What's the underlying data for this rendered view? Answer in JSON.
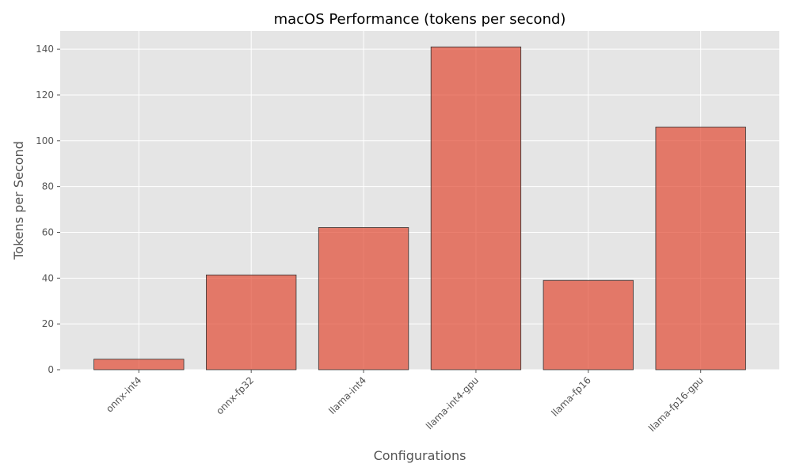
{
  "chart_data": {
    "type": "bar",
    "title": "macOS Performance (tokens per second)",
    "xlabel": "Configurations",
    "ylabel": "Tokens per Second",
    "categories": [
      "onnx-int4",
      "onnx-fp32",
      "llama-int4",
      "llama-int4-gpu",
      "llama-fp16",
      "llama-fp16-gpu"
    ],
    "values": [
      4.6,
      41.4,
      62.1,
      141.0,
      39.0,
      106.0
    ],
    "ylim": [
      0,
      148
    ],
    "yticks": [
      0,
      20,
      40,
      60,
      80,
      100,
      120,
      140
    ],
    "grid": true,
    "legend": "none",
    "colors": {
      "bar": "#E24A33",
      "bar_edge": "#333333",
      "plot_background": "#E5E5E5",
      "grid": "#FFFFFF"
    }
  }
}
